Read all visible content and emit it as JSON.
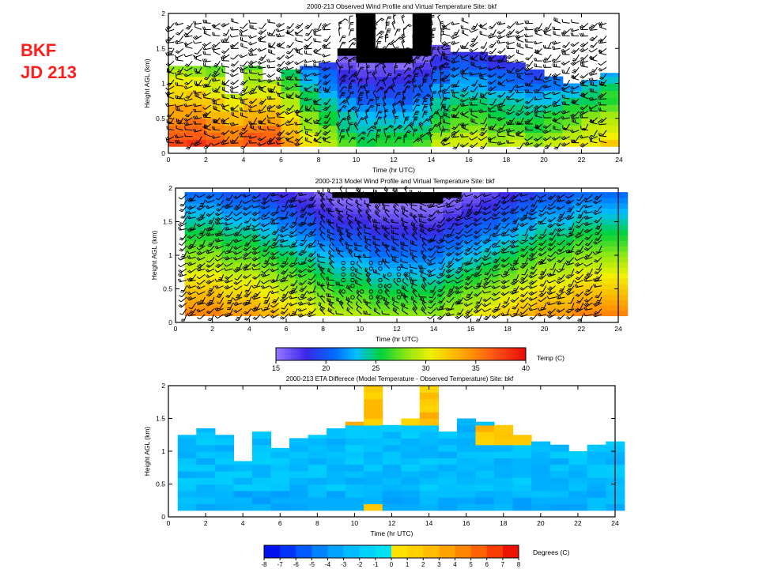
{
  "label": {
    "site": "BKF",
    "day": "JD 213"
  },
  "chart_data": [
    {
      "type": "heatmap",
      "title": "2000-213   Observed Wind Profile and Virtual Temperature   Site: bkf",
      "xlabel": "Time (hr UTC)",
      "ylabel": "Height AGL (km)",
      "xlim": [
        0,
        24
      ],
      "ylim": [
        0,
        2
      ],
      "xticks": [
        "0",
        "2",
        "4",
        "6",
        "8",
        "10",
        "12",
        "14",
        "16",
        "18",
        "20",
        "22",
        "24"
      ],
      "yticks": [
        "0",
        "0.5",
        "1",
        "1.5",
        "2"
      ],
      "hours": [
        0.5,
        1.5,
        2.5,
        3.5,
        4.5,
        5.5,
        6.5,
        7.5,
        8.5,
        9.5,
        10.5,
        11.5,
        12.5,
        13.5,
        14.5,
        15.5,
        16.5,
        17.5,
        18.5,
        19.5,
        20.5,
        21.5,
        22.5,
        23.5
      ],
      "column_top_km": [
        1.25,
        1.25,
        1.25,
        0.85,
        1.25,
        1.05,
        1.2,
        1.25,
        1.3,
        1.5,
        2.0,
        1.5,
        1.5,
        2.0,
        1.55,
        1.45,
        1.45,
        1.4,
        1.3,
        1.2,
        1.1,
        1.0,
        1.05,
        1.15
      ],
      "temp_surface_c": [
        38,
        38,
        37,
        36,
        37,
        37,
        34,
        31,
        29,
        27,
        26,
        26,
        26,
        27,
        29,
        30,
        30,
        29,
        29,
        28,
        29,
        30,
        31,
        32
      ],
      "temp_lapse_c_per_km": 9,
      "overlay": "wind barbs"
    },
    {
      "type": "heatmap",
      "title": "2000-213   Model Wind Profile and Virtual Temperature   Site: bkf",
      "xlabel": "Time (hr UTC)",
      "ylabel": "Height AGL (km)",
      "xlim": [
        0,
        24
      ],
      "ylim": [
        0,
        2
      ],
      "xticks": [
        "0",
        "2",
        "4",
        "6",
        "8",
        "10",
        "12",
        "14",
        "16",
        "18",
        "20",
        "22",
        "24"
      ],
      "yticks": [
        "0",
        "0.5",
        "1",
        "1.5",
        "2"
      ],
      "model_top_km": 1.9,
      "temp_surface_c": [
        35,
        35,
        34,
        34,
        33,
        32,
        31,
        30,
        29,
        29,
        28,
        28,
        28,
        28,
        29,
        30,
        31,
        32,
        33,
        34,
        34,
        35,
        35,
        35
      ],
      "temp_lapse_c_per_km": 8,
      "overlay": "wind barbs"
    },
    {
      "type": "colorbar",
      "label": "Temp (C)",
      "min": 15,
      "max": 40,
      "ticks": [
        "15",
        "20",
        "25",
        "30",
        "35",
        "40"
      ]
    },
    {
      "type": "heatmap",
      "title": "2000-213   ETA  Differece (Model Temperature - Observed Temperature)   Site: bkf",
      "xlabel": "Time (hr UTC)",
      "ylabel": "Height AGL (km)",
      "xlim": [
        0,
        24
      ],
      "ylim": [
        0,
        2
      ],
      "xticks": [
        "0",
        "2",
        "4",
        "6",
        "8",
        "10",
        "12",
        "14",
        "16",
        "18",
        "20",
        "22",
        "24"
      ],
      "yticks": [
        "0",
        "0.5",
        "1",
        "1.5",
        "2"
      ],
      "column_top_km": [
        1.25,
        1.35,
        1.25,
        0.85,
        1.3,
        1.05,
        1.2,
        1.25,
        1.35,
        1.45,
        2.0,
        1.4,
        1.5,
        2.0,
        1.3,
        1.5,
        1.45,
        1.4,
        1.25,
        1.15,
        1.1,
        1.0,
        1.1,
        1.15
      ],
      "diff_values_note": "mostly -3 to -1 C; positive +1 to +3 C near top at 10-15 and 17-19 UTC"
    },
    {
      "type": "colorbar",
      "label": "Degrees (C)",
      "min": -8,
      "max": 8,
      "ticks": [
        "-8",
        "-7",
        "-6",
        "-5",
        "-4",
        "-3",
        "-2",
        "-1",
        "0",
        "1",
        "2",
        "3",
        "4",
        "5",
        "6",
        "7",
        "8"
      ]
    }
  ]
}
